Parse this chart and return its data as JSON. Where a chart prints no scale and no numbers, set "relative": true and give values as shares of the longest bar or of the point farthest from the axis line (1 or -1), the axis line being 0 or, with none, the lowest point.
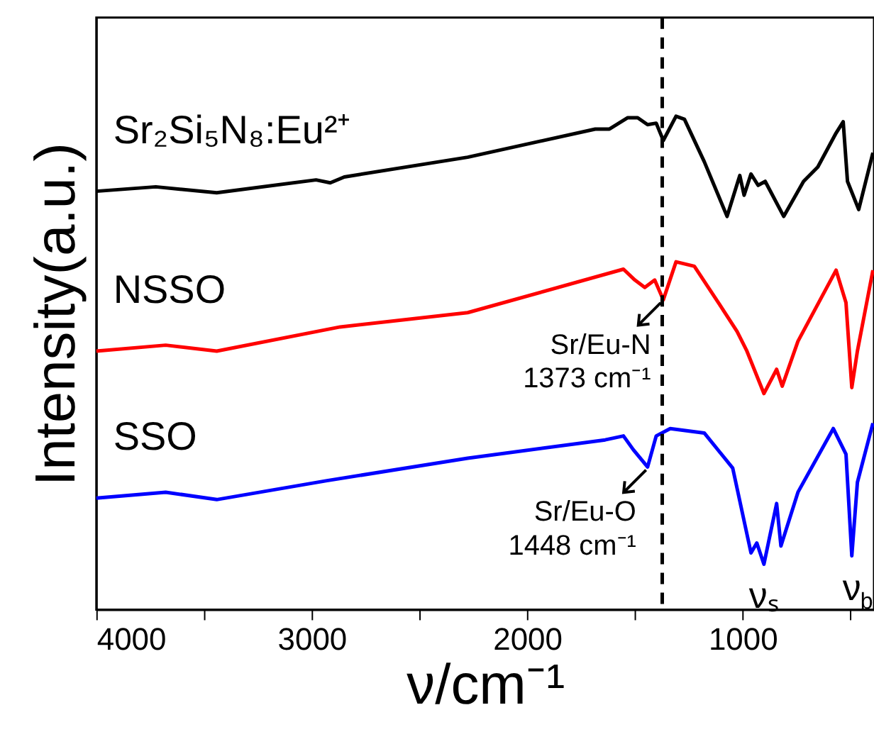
{
  "chart_data": {
    "type": "line",
    "xlabel": "ν/cm⁻¹",
    "ylabel": "Intensity(a.u.)",
    "relative": true,
    "xlim": [
      4000,
      390
    ],
    "xticks": [
      4000,
      {
        "value": 3500,
        "label": null
      },
      3000,
      {
        "value": 2500,
        "label": null
      },
      2000,
      {
        "value": 1500,
        "label": null
      },
      1000,
      {
        "value": 500,
        "label": null
      }
    ],
    "tick_labels": "x",
    "grid": false,
    "marker": "none",
    "line_style": "solid",
    "series": [
      {
        "name": "Sr₂Si₅N₈:Eu²⁺",
        "color": "#000000",
        "x": [
          4000,
          3724,
          3441,
          2980,
          2914,
          2849,
          2276,
          1684,
          1618,
          1533,
          1487,
          1441,
          1401,
          1368,
          1309,
          1270,
          1178,
          1072,
          1013,
          993,
          961,
          928,
          895,
          809,
          717,
          651,
          566,
          533,
          513,
          461,
          395
        ],
        "values": [
          0.848,
          0.857,
          0.845,
          0.871,
          0.865,
          0.877,
          0.917,
          0.974,
          0.974,
          0.997,
          0.997,
          0.983,
          0.986,
          0.951,
          1.0,
          0.994,
          0.908,
          0.797,
          0.88,
          0.84,
          0.883,
          0.86,
          0.868,
          0.797,
          0.868,
          0.897,
          0.966,
          0.989,
          0.868,
          0.811,
          0.926
        ]
      },
      {
        "name": "NSSO",
        "color": "#ff0000",
        "x": [
          4000,
          3678,
          3441,
          2868,
          2276,
          1553,
          1500,
          1454,
          1408,
          1368,
          1309,
          1224,
          1112,
          1026,
          980,
          901,
          842,
          816,
          743,
          566,
          520,
          493,
          467,
          395
        ],
        "values": [
          0.524,
          0.536,
          0.524,
          0.573,
          0.602,
          0.69,
          0.668,
          0.653,
          0.668,
          0.628,
          0.705,
          0.696,
          0.622,
          0.564,
          0.524,
          0.438,
          0.487,
          0.453,
          0.544,
          0.688,
          0.622,
          0.45,
          0.524,
          0.688
        ]
      },
      {
        "name": "SSO",
        "color": "#0000ff",
        "x": [
          4000,
          3678,
          3441,
          2934,
          2276,
          1638,
          1553,
          1507,
          1441,
          1401,
          1336,
          1178,
          1046,
          961,
          934,
          901,
          842,
          822,
          743,
          579,
          520,
          493,
          467,
          395
        ],
        "values": [
          0.226,
          0.238,
          0.223,
          0.261,
          0.307,
          0.344,
          0.352,
          0.324,
          0.289,
          0.352,
          0.367,
          0.358,
          0.287,
          0.115,
          0.135,
          0.092,
          0.215,
          0.129,
          0.238,
          0.367,
          0.315,
          0.109,
          0.258,
          0.378
        ]
      }
    ],
    "ref_lines": [
      {
        "axis": "x",
        "value": 1373,
        "color": "#000000",
        "line_style": "dashed"
      }
    ],
    "annotations": [
      {
        "text": "Sr/Eu-N\n1373 cm⁻¹",
        "x": 1373,
        "y": 0.628
      },
      {
        "text": "Sr/Eu-O\n1448 cm⁻¹",
        "x": 1441,
        "y": 0.289
      },
      {
        "text": "νₛ",
        "x": 901,
        "y": 0.092
      },
      {
        "text": "ν$_{b}$",
        "x": 493,
        "y": 0.109
      }
    ]
  }
}
